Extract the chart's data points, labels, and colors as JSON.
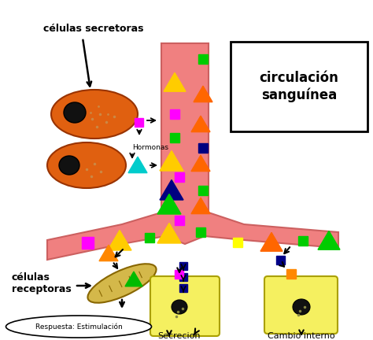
{
  "bg_color": "#ffffff",
  "vessel_color": "#F08080",
  "vessel_edge": "#cc6060",
  "orange_cell": "#E06010",
  "yellow_cell": "#F5F060",
  "title": "circulación\nsanguínea",
  "label_celulas_sec": "células secretoras",
  "label_celulas_rec": "células\nreceptoras",
  "label_hormonas": "Hormonas",
  "label_respuesta": "Respuesta: Estimulación",
  "label_secrecion": "Secrecion",
  "label_cambio": "Cambio interno"
}
